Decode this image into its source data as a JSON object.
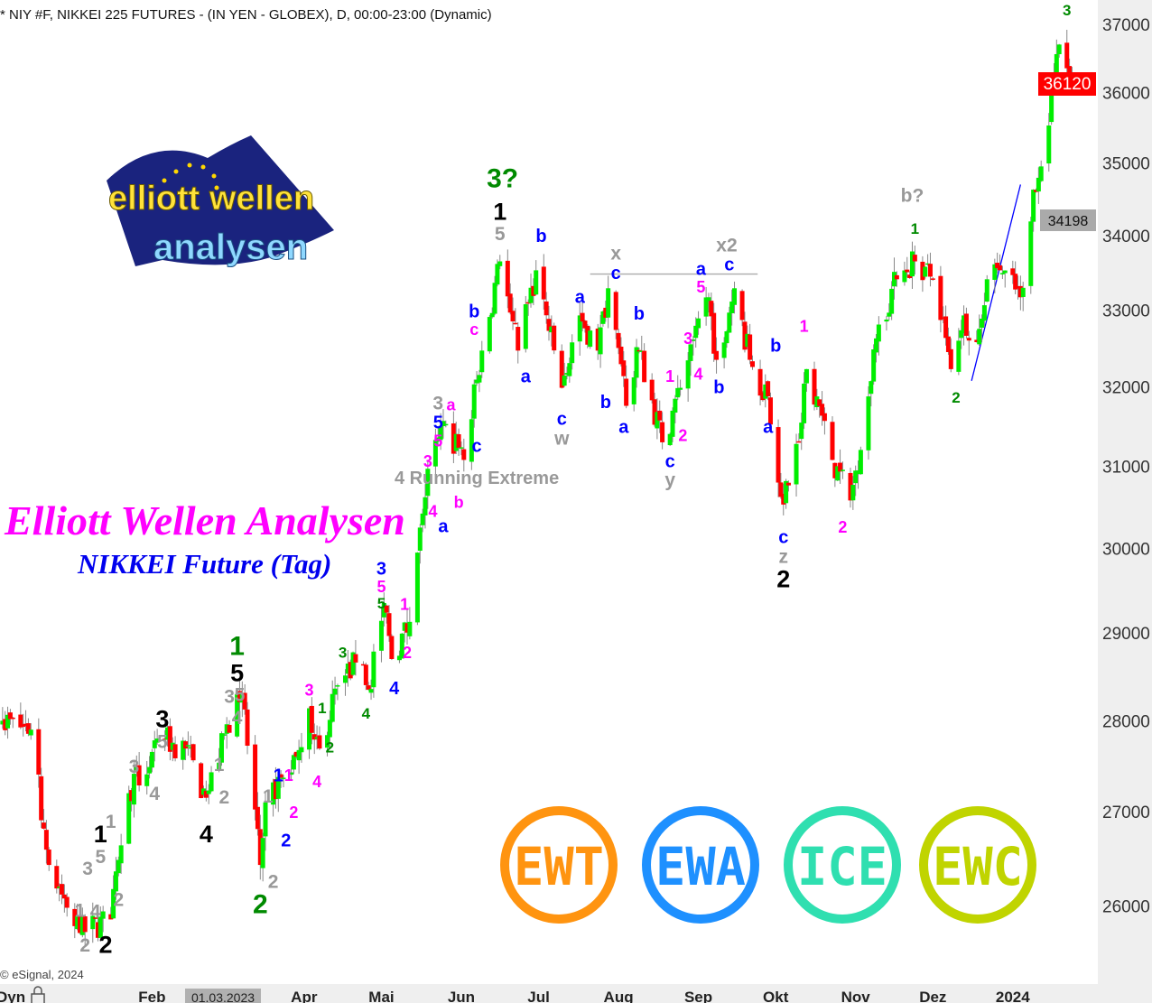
{
  "header": {
    "title": "* NIY #F, NIKKEI 225 FUTURES - (IN YEN - GLOBEX), D, 00:00-23:00 (Dynamic)"
  },
  "branding": {
    "logo_text_1": "elliott wellen",
    "logo_text_2": "analysen",
    "title": "Elliott Wellen Analysen",
    "subtitle": "NIKKEI Future (Tag)",
    "copyright": "© eSignal, 2024",
    "badges": [
      {
        "text": "EWT",
        "color": "#ff9410"
      },
      {
        "text": "EWA",
        "color": "#1e90ff"
      },
      {
        "text": "ICE",
        "color": "#2fdfb0"
      },
      {
        "text": "EWC",
        "color": "#c0d400"
      }
    ]
  },
  "xaxis": {
    "mode_label": "Dyn",
    "cursor_date": "01.03.2023",
    "months": [
      {
        "label": "Feb",
        "date": "2023-02-01"
      },
      {
        "label": "Apr",
        "date": "2023-04-01"
      },
      {
        "label": "Mai",
        "date": "2023-05-01"
      },
      {
        "label": "Jun",
        "date": "2023-06-01"
      },
      {
        "label": "Jul",
        "date": "2023-07-01"
      },
      {
        "label": "Aug",
        "date": "2023-08-01"
      },
      {
        "label": "Sep",
        "date": "2023-09-01"
      },
      {
        "label": "Okt",
        "date": "2023-10-01"
      },
      {
        "label": "Nov",
        "date": "2023-11-01"
      },
      {
        "label": "Dez",
        "date": "2023-12-01"
      },
      {
        "label": "2024",
        "date": "2024-01-01"
      }
    ]
  },
  "chart_data": {
    "type": "candlestick",
    "title": "NIY #F, NIKKEI 225 FUTURES - (IN YEN - GLOBEX), D, 00:00-23:00 (Dynamic)",
    "yscale": "log",
    "ylim": [
      25200,
      37360
    ],
    "xlim": [
      "2022-12-04",
      "2024-02-03"
    ],
    "yticks": [
      26000,
      27000,
      28000,
      29000,
      30000,
      31000,
      32000,
      33000,
      34000,
      35000,
      36000,
      37000
    ],
    "last_price": {
      "value": "36120",
      "color": "#ff0000"
    },
    "marker_price": {
      "value": "34198",
      "color": "#aaaaaa"
    },
    "colors": {
      "up": "#00ee00",
      "down": "#ff0000",
      "wick": "#888888"
    },
    "grid": false,
    "pivot_closes": [
      [
        "2022-12-05",
        28000
      ],
      [
        "2022-12-16",
        27900
      ],
      [
        "2022-12-23",
        26430
      ],
      [
        "2023-01-04",
        25720
      ],
      [
        "2023-01-16",
        25860
      ],
      [
        "2023-01-23",
        27200
      ],
      [
        "2023-02-06",
        27790
      ],
      [
        "2023-02-14",
        27690
      ],
      [
        "2023-02-22",
        27150
      ],
      [
        "2023-03-06",
        28300
      ],
      [
        "2023-03-08",
        28300
      ],
      [
        "2023-03-15",
        26430
      ],
      [
        "2023-03-17",
        27100
      ],
      [
        "2023-03-29",
        27600
      ],
      [
        "2023-04-03",
        28140
      ],
      [
        "2023-04-07",
        27690
      ],
      [
        "2023-04-14",
        28400
      ],
      [
        "2023-04-21",
        28660
      ],
      [
        "2023-04-26",
        28350
      ],
      [
        "2023-05-02",
        29350
      ],
      [
        "2023-05-05",
        28700
      ],
      [
        "2023-05-12",
        29130
      ],
      [
        "2023-05-17",
        30420
      ],
      [
        "2023-05-19",
        30970
      ],
      [
        "2023-05-26",
        31530
      ],
      [
        "2023-06-02",
        31080
      ],
      [
        "2023-06-09",
        32470
      ],
      [
        "2023-06-16",
        33650
      ],
      [
        "2023-06-23",
        32470
      ],
      [
        "2023-06-30",
        33530
      ],
      [
        "2023-07-10",
        31990
      ],
      [
        "2023-07-17",
        32930
      ],
      [
        "2023-07-24",
        32470
      ],
      [
        "2023-07-28",
        33290
      ],
      [
        "2023-08-04",
        31760
      ],
      [
        "2023-08-09",
        32470
      ],
      [
        "2023-08-18",
        31300
      ],
      [
        "2023-08-25",
        31990
      ],
      [
        "2023-09-05",
        33170
      ],
      [
        "2023-09-08",
        32350
      ],
      [
        "2023-09-15",
        33290
      ],
      [
        "2023-09-21",
        32350
      ],
      [
        "2023-09-28",
        31880
      ],
      [
        "2023-10-04",
        30530
      ],
      [
        "2023-10-10",
        31300
      ],
      [
        "2023-10-13",
        32230
      ],
      [
        "2023-10-17",
        31880
      ],
      [
        "2023-10-23",
        31080
      ],
      [
        "2023-10-30",
        30580
      ],
      [
        "2023-11-06",
        31880
      ],
      [
        "2023-11-10",
        32810
      ],
      [
        "2023-11-17",
        33410
      ],
      [
        "2023-11-24",
        33650
      ],
      [
        "2023-12-01",
        33410
      ],
      [
        "2023-12-08",
        32230
      ],
      [
        "2023-12-13",
        32930
      ],
      [
        "2023-12-18",
        32580
      ],
      [
        "2023-12-22",
        33410
      ],
      [
        "2023-12-27",
        33530
      ],
      [
        "2024-01-04",
        33170
      ],
      [
        "2024-01-09",
        34630
      ],
      [
        "2024-01-15",
        35530
      ],
      [
        "2024-01-19",
        36700
      ],
      [
        "2024-01-24",
        36120
      ]
    ],
    "annotations": [
      {
        "text": "3",
        "date": "2024-01-22",
        "price": 37190,
        "color": "#008a00",
        "degree": "minuette"
      },
      {
        "text": "3?",
        "date": "2023-06-17",
        "price": 34760,
        "color": "#008a00",
        "degree": "cycle"
      },
      {
        "text": "1",
        "date": "2023-06-16",
        "price": 34300,
        "color": "#000000",
        "degree": "primary"
      },
      {
        "text": "5",
        "date": "2023-06-16",
        "price": 34080,
        "color": "#999999",
        "degree": "intermediate"
      },
      {
        "text": "b",
        "date": "2023-07-02",
        "price": 33980,
        "color": "#0000ff",
        "degree": "minor"
      },
      {
        "text": "x",
        "date": "2023-07-31",
        "price": 33740,
        "color": "#999999",
        "degree": "intermediate"
      },
      {
        "text": "c",
        "date": "2023-07-31",
        "price": 33550,
        "color": "#0000ff",
        "degree": "minor"
      },
      {
        "text": "a",
        "date": "2023-09-02",
        "price": 33530,
        "color": "#0000ff",
        "degree": "minor"
      },
      {
        "text": "x2",
        "date": "2023-09-12",
        "price": 33850,
        "color": "#999999",
        "degree": "intermediate"
      },
      {
        "text": "c",
        "date": "2023-09-13",
        "price": 33590,
        "color": "#0000ff",
        "degree": "minor"
      },
      {
        "text": "5",
        "date": "2023-09-02",
        "price": 33290,
        "color": "#ff00ff",
        "degree": "minute"
      },
      {
        "text": "a",
        "date": "2023-07-17",
        "price": 33160,
        "color": "#0000ff",
        "degree": "minor"
      },
      {
        "text": "b",
        "date": "2023-08-09",
        "price": 32940,
        "color": "#0000ff",
        "degree": "minor"
      },
      {
        "text": "b",
        "date": "2023-06-06",
        "price": 32970,
        "color": "#0000ff",
        "degree": "minor"
      },
      {
        "text": "c",
        "date": "2023-06-06",
        "price": 32780,
        "color": "#ff00ff",
        "degree": "minute"
      },
      {
        "text": "3",
        "date": "2023-08-28",
        "price": 32610,
        "color": "#ff00ff",
        "degree": "minute"
      },
      {
        "text": "b",
        "date": "2023-10-01",
        "price": 32520,
        "color": "#0000ff",
        "degree": "minor"
      },
      {
        "text": "1",
        "date": "2023-10-12",
        "price": 32770,
        "color": "#ff00ff",
        "degree": "minute"
      },
      {
        "text": "b?",
        "date": "2023-11-23",
        "price": 34530,
        "color": "#999999",
        "degree": "intermediate"
      },
      {
        "text": "1",
        "date": "2023-11-24",
        "price": 34080,
        "color": "#008a00",
        "degree": "minuette"
      },
      {
        "text": "4",
        "date": "2023-09-01",
        "price": 32150,
        "color": "#ff00ff",
        "degree": "minute"
      },
      {
        "text": "a",
        "date": "2023-06-26",
        "price": 32120,
        "color": "#0000ff",
        "degree": "minor"
      },
      {
        "text": "b",
        "date": "2023-09-09",
        "price": 31980,
        "color": "#0000ff",
        "degree": "minor"
      },
      {
        "text": "1",
        "date": "2023-08-21",
        "price": 32120,
        "color": "#ff00ff",
        "degree": "minute"
      },
      {
        "text": "2",
        "date": "2023-12-10",
        "price": 31850,
        "color": "#008a00",
        "degree": "minuette"
      },
      {
        "text": "b",
        "date": "2023-07-27",
        "price": 31790,
        "color": "#0000ff",
        "degree": "minor"
      },
      {
        "text": "3",
        "date": "2023-05-23",
        "price": 31780,
        "color": "#999999",
        "degree": "intermediate"
      },
      {
        "text": "a",
        "date": "2023-05-28",
        "price": 31760,
        "color": "#ff00ff",
        "degree": "minute"
      },
      {
        "text": "5",
        "date": "2023-05-23",
        "price": 31580,
        "color": "#0000ff",
        "degree": "minor"
      },
      {
        "text": "c",
        "date": "2023-07-10",
        "price": 31580,
        "color": "#0000ff",
        "degree": "minor"
      },
      {
        "text": "w",
        "date": "2023-07-10",
        "price": 31380,
        "color": "#999999",
        "degree": "intermediate"
      },
      {
        "text": "a",
        "date": "2023-08-03",
        "price": 31480,
        "color": "#0000ff",
        "degree": "minor"
      },
      {
        "text": "a",
        "date": "2023-09-28",
        "price": 31480,
        "color": "#0000ff",
        "degree": "minor"
      },
      {
        "text": "2",
        "date": "2023-08-26",
        "price": 31370,
        "color": "#ff00ff",
        "degree": "minute"
      },
      {
        "text": "5",
        "date": "2023-05-23",
        "price": 31390,
        "color": "#ff00ff",
        "degree": "minute"
      },
      {
        "text": "c",
        "date": "2023-06-07",
        "price": 31240,
        "color": "#0000ff",
        "degree": "minor"
      },
      {
        "text": "3",
        "date": "2023-05-19",
        "price": 31050,
        "color": "#ff00ff",
        "degree": "minute"
      },
      {
        "text": "4 Running Extreme",
        "date": "2023-06-07",
        "price": 31020,
        "color": "#999999",
        "degree": "note"
      },
      {
        "text": "c",
        "date": "2023-08-21",
        "price": 31050,
        "color": "#0000ff",
        "degree": "minor"
      },
      {
        "text": "y",
        "date": "2023-08-21",
        "price": 30840,
        "color": "#999999",
        "degree": "intermediate"
      },
      {
        "text": "b",
        "date": "2023-05-31",
        "price": 30540,
        "color": "#ff00ff",
        "degree": "minute"
      },
      {
        "text": "4",
        "date": "2023-05-21",
        "price": 30430,
        "color": "#ff00ff",
        "degree": "minute"
      },
      {
        "text": "a",
        "date": "2023-05-25",
        "price": 30250,
        "color": "#0000ff",
        "degree": "minor"
      },
      {
        "text": "2",
        "date": "2023-10-27",
        "price": 30240,
        "color": "#ff00ff",
        "degree": "minute"
      },
      {
        "text": "c",
        "date": "2023-10-04",
        "price": 30120,
        "color": "#0000ff",
        "degree": "minor"
      },
      {
        "text": "z",
        "date": "2023-10-04",
        "price": 29950,
        "color": "#999999",
        "degree": "intermediate"
      },
      {
        "text": "2",
        "date": "2023-10-04",
        "price": 29740,
        "color": "#000000",
        "degree": "primary"
      },
      {
        "text": "3",
        "date": "2023-05-01",
        "price": 29740,
        "color": "#0000ff",
        "degree": "minor"
      },
      {
        "text": "5",
        "date": "2023-05-01",
        "price": 29550,
        "color": "#ff00ff",
        "degree": "minute"
      },
      {
        "text": "5",
        "date": "2023-05-01",
        "price": 29400,
        "color": "#008a00",
        "degree": "minuette"
      },
      {
        "text": "1",
        "date": "2023-05-10",
        "price": 29320,
        "color": "#ff00ff",
        "degree": "minute"
      },
      {
        "text": "2",
        "date": "2023-05-11",
        "price": 28760,
        "color": "#ff00ff",
        "degree": "minute"
      },
      {
        "text": "3",
        "date": "2023-04-16",
        "price": 28760,
        "color": "#008a00",
        "degree": "minuette"
      },
      {
        "text": "4",
        "date": "2023-05-06",
        "price": 28350,
        "color": "#0000ff",
        "degree": "minor"
      },
      {
        "text": "4",
        "date": "2023-04-25",
        "price": 28070,
        "color": "#008a00",
        "degree": "minuette"
      },
      {
        "text": "2",
        "date": "2023-04-11",
        "price": 27690,
        "color": "#008a00",
        "degree": "minuette"
      },
      {
        "text": "1",
        "date": "2023-04-08",
        "price": 28130,
        "color": "#008a00",
        "degree": "minuette"
      },
      {
        "text": "3",
        "date": "2023-04-03",
        "price": 28330,
        "color": "#ff00ff",
        "degree": "minute"
      },
      {
        "text": "4",
        "date": "2023-04-06",
        "price": 27310,
        "color": "#ff00ff",
        "degree": "minute"
      },
      {
        "text": "1",
        "date": "2023-03-22",
        "price": 27380,
        "color": "#0000ff",
        "degree": "minor"
      },
      {
        "text": "1",
        "date": "2023-03-26",
        "price": 27380,
        "color": "#ff00ff",
        "degree": "minute"
      },
      {
        "text": "2",
        "date": "2023-03-28",
        "price": 26980,
        "color": "#ff00ff",
        "degree": "minute"
      },
      {
        "text": "2",
        "date": "2023-03-25",
        "price": 26680,
        "color": "#0000ff",
        "degree": "minor"
      },
      {
        "text": "1",
        "date": "2023-03-18",
        "price": 27150,
        "color": "#999999",
        "degree": "intermediate"
      },
      {
        "text": "2",
        "date": "2023-03-20",
        "price": 26240,
        "color": "#999999",
        "degree": "intermediate"
      },
      {
        "text": "2",
        "date": "2023-03-15",
        "price": 26000,
        "color": "#008a00",
        "degree": "cycle"
      },
      {
        "text": "1",
        "date": "2023-03-06",
        "price": 28830,
        "color": "#008a00",
        "degree": "cycle"
      },
      {
        "text": "5",
        "date": "2023-03-06",
        "price": 28580,
        "color": "#000000",
        "degree": "primary"
      },
      {
        "text": "5",
        "date": "2023-03-07",
        "price": 28440,
        "color": "#999999",
        "degree": "intermediate"
      },
      {
        "text": "3",
        "date": "2023-03-03",
        "price": 28360,
        "color": "#999999",
        "degree": "intermediate"
      },
      {
        "text": "4",
        "date": "2023-03-06",
        "price": 28020,
        "color": "#999999",
        "degree": "intermediate"
      },
      {
        "text": "1",
        "date": "2023-02-27",
        "price": 27500,
        "color": "#999999",
        "degree": "intermediate"
      },
      {
        "text": "2",
        "date": "2023-03-01",
        "price": 27140,
        "color": "#999999",
        "degree": "intermediate"
      },
      {
        "text": "3",
        "date": "2023-02-05",
        "price": 28000,
        "color": "#000000",
        "degree": "primary"
      },
      {
        "text": "5",
        "date": "2023-02-05",
        "price": 27810,
        "color": "#999999",
        "degree": "intermediate"
      },
      {
        "text": "3",
        "date": "2023-01-25",
        "price": 27480,
        "color": "#999999",
        "degree": "intermediate"
      },
      {
        "text": "4",
        "date": "2023-02-02",
        "price": 27180,
        "color": "#999999",
        "degree": "intermediate"
      },
      {
        "text": "4",
        "date": "2023-02-22",
        "price": 26740,
        "color": "#000000",
        "degree": "primary"
      },
      {
        "text": "1",
        "date": "2023-01-12",
        "price": 26740,
        "color": "#000000",
        "degree": "primary"
      },
      {
        "text": "1",
        "date": "2023-01-16",
        "price": 26880,
        "color": "#999999",
        "degree": "intermediate"
      },
      {
        "text": "5",
        "date": "2023-01-12",
        "price": 26580,
        "color": "#999999",
        "degree": "intermediate"
      },
      {
        "text": "3",
        "date": "2023-01-07",
        "price": 26380,
        "color": "#999999",
        "degree": "intermediate"
      },
      {
        "text": "4",
        "date": "2023-01-10",
        "price": 25930,
        "color": "#999999",
        "degree": "intermediate"
      },
      {
        "text": "1",
        "date": "2023-01-04",
        "price": 25940,
        "color": "#999999",
        "degree": "intermediate"
      },
      {
        "text": "2",
        "date": "2023-01-19",
        "price": 26050,
        "color": "#999999",
        "degree": "intermediate"
      },
      {
        "text": "2",
        "date": "2023-01-06",
        "price": 25580,
        "color": "#999999",
        "degree": "intermediate"
      },
      {
        "text": "2",
        "date": "2023-01-14",
        "price": 25580,
        "color": "#000000",
        "degree": "primary"
      }
    ],
    "lines": [
      {
        "name": "trendline",
        "from": [
          "2023-12-16",
          32080
        ],
        "to": [
          "2024-01-04",
          34700
        ],
        "color": "#0000ff"
      },
      {
        "name": "horizontal-level",
        "from": [
          "2023-07-21",
          33480
        ],
        "to": [
          "2023-09-24",
          33480
        ],
        "color": "#aaaaaa"
      }
    ]
  }
}
